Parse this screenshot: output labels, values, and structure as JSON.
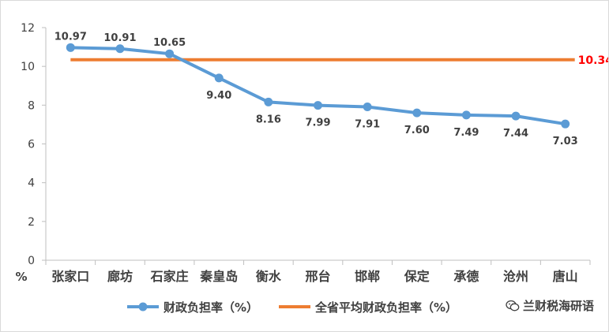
{
  "chart_data": {
    "type": "line",
    "categories": [
      "张家口",
      "廊坊",
      "石家庄",
      "秦皇岛",
      "衡水",
      "邢台",
      "邯郸",
      "保定",
      "承德",
      "沧州",
      "唐山"
    ],
    "series": [
      {
        "name": "财政负担率（%）",
        "values": [
          10.97,
          10.91,
          10.65,
          9.4,
          8.16,
          7.99,
          7.91,
          7.6,
          7.49,
          7.44,
          7.03
        ],
        "value_labels": [
          "10.97",
          "10.91",
          "10.65",
          "9.40",
          "8.16",
          "7.99",
          "7.91",
          "7.60",
          "7.49",
          "7.44",
          "7.03"
        ],
        "color": "#5b9bd5",
        "marker": "circle"
      },
      {
        "name": "全省平均财政负担率（%）",
        "values": [
          10.34,
          10.34,
          10.34,
          10.34,
          10.34,
          10.34,
          10.34,
          10.34,
          10.34,
          10.34,
          10.34
        ],
        "end_label": "10.34",
        "end_label_color": "#ff0000",
        "color": "#ed7d31"
      }
    ],
    "y_unit_label": "%",
    "ylim": [
      0,
      12
    ],
    "yticks": [
      0,
      2,
      4,
      6,
      8,
      10,
      12
    ],
    "grid": false,
    "legend": "bottom"
  },
  "watermark": {
    "text": "兰财税海研语",
    "icon": "wechat-icon"
  }
}
